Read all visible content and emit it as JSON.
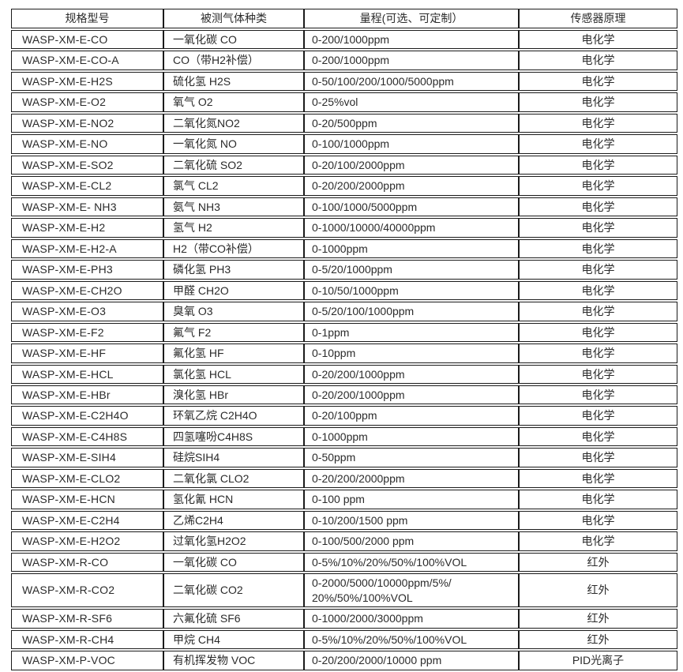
{
  "table": {
    "headers": [
      "规格型号",
      "被测气体种类",
      "量程(可选、可定制）",
      "传感器原理"
    ],
    "rows": [
      [
        "WASP-XM-E-CO",
        "一氧化碳 CO",
        "0-200/1000ppm",
        "电化学"
      ],
      [
        "WASP-XM-E-CO-A",
        "CO（带H2补偿）",
        "0-200/1000ppm",
        "电化学"
      ],
      [
        "WASP-XM-E-H2S",
        "硫化氢 H2S",
        "0-50/100/200/1000/5000ppm",
        "电化学"
      ],
      [
        "WASP-XM-E-O2",
        "氧气 O2",
        "0-25%vol",
        "电化学"
      ],
      [
        "WASP-XM-E-NO2",
        "二氧化氮NO2",
        "0-20/500ppm",
        "电化学"
      ],
      [
        "WASP-XM-E-NO",
        "一氧化氮 NO",
        "0-100/1000ppm",
        "电化学"
      ],
      [
        "WASP-XM-E-SO2",
        "二氧化硫 SO2",
        "0-20/100/2000ppm",
        "电化学"
      ],
      [
        "WASP-XM-E-CL2",
        "氯气 CL2",
        "0-20/200/2000ppm",
        "电化学"
      ],
      [
        "WASP-XM-E- NH3",
        "氨气 NH3",
        "0-100/1000/5000ppm",
        "电化学"
      ],
      [
        "WASP-XM-E-H2",
        "氢气 H2",
        "0-1000/10000/40000ppm",
        "电化学"
      ],
      [
        "WASP-XM-E-H2-A",
        "H2（带CO补偿）",
        "0-1000ppm",
        "电化学"
      ],
      [
        "WASP-XM-E-PH3",
        "磷化氢 PH3",
        "0-5/20/1000ppm",
        "电化学"
      ],
      [
        "WASP-XM-E-CH2O",
        "甲醛 CH2O",
        "0-10/50/1000ppm",
        "电化学"
      ],
      [
        "WASP-XM-E-O3",
        "臭氧 O3",
        "0-5/20/100/1000ppm",
        "电化学"
      ],
      [
        "WASP-XM-E-F2",
        "氟气 F2",
        "0-1ppm",
        "电化学"
      ],
      [
        "WASP-XM-E-HF",
        "氟化氢 HF",
        "0-10ppm",
        "电化学"
      ],
      [
        "WASP-XM-E-HCL",
        "氯化氢 HCL",
        "0-20/200/1000ppm",
        "电化学"
      ],
      [
        "WASP-XM-E-HBr",
        "溴化氢 HBr",
        "0-20/200/1000ppm",
        "电化学"
      ],
      [
        "WASP-XM-E-C2H4O",
        "环氧乙烷 C2H4O",
        "0-20/100ppm",
        "电化学"
      ],
      [
        "WASP-XM-E-C4H8S",
        "四氢噻吩C4H8S",
        "0-1000ppm",
        "电化学"
      ],
      [
        "WASP-XM-E-SIH4",
        "硅烷SIH4",
        "0-50ppm",
        "电化学"
      ],
      [
        "WASP-XM-E-CLO2",
        "二氧化氯 CLO2",
        "0-20/200/2000ppm",
        "电化学"
      ],
      [
        "WASP-XM-E-HCN",
        "氢化氰 HCN",
        "0-100 ppm",
        "电化学"
      ],
      [
        "WASP-XM-E-C2H4",
        "乙烯C2H4",
        "0-10/200/1500 ppm",
        "电化学"
      ],
      [
        "WASP-XM-E-H2O2",
        "过氧化氢H2O2",
        "0-100/500/2000 ppm",
        "电化学"
      ],
      [
        "WASP-XM-R-CO",
        "一氧化碳 CO",
        "0-5%/10%/20%/50%/100%VOL",
        "红外"
      ],
      [
        "WASP-XM-R-CO2",
        "二氧化碳 CO2",
        "0-2000/5000/10000ppm/5%/\n20%/50%/100%VOL",
        "红外"
      ],
      [
        "WASP-XM-R-SF6",
        "六氟化硫 SF6",
        "0-1000/2000/3000ppm",
        "红外"
      ],
      [
        "WASP-XM-R-CH4",
        "甲烷 CH4",
        "0-5%/10%/20%/50%/100%VOL",
        "红外"
      ],
      [
        "WASP-XM-P-VOC",
        "有机挥发物 VOC",
        "0-20/200/2000/10000 ppm",
        "PID光离子"
      ]
    ]
  }
}
